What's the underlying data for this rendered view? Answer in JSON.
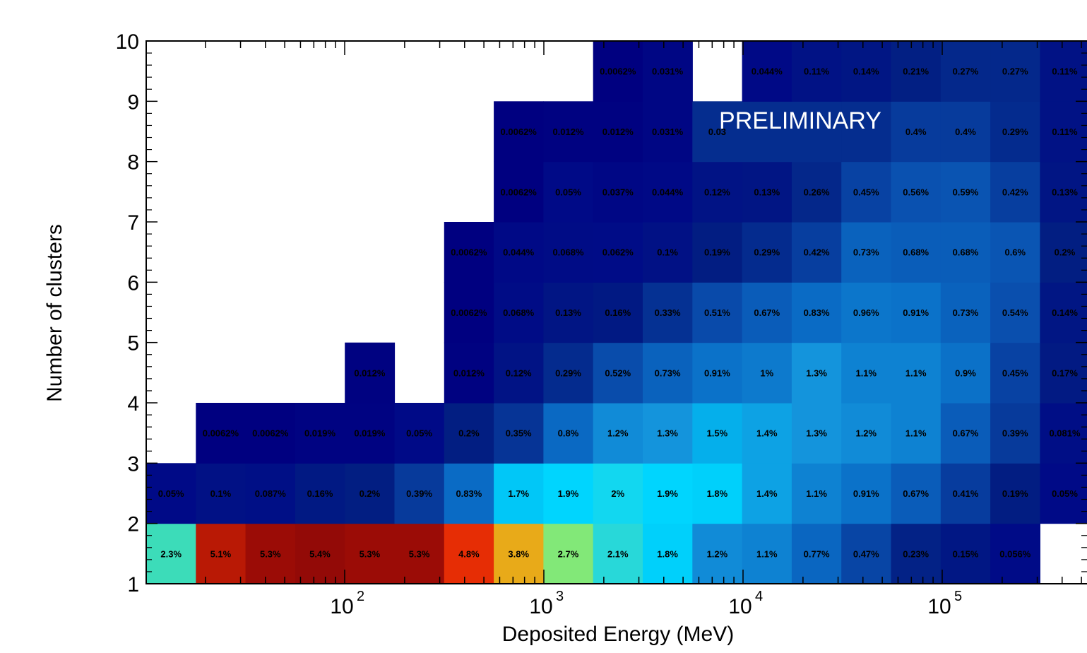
{
  "chart_data": {
    "type": "heatmap",
    "xlabel": "Deposited Energy (MeV)",
    "ylabel": "Number of clusters",
    "watermark": "PRELIMINARY",
    "x_scale": "log",
    "x_range_mev": [
      10,
      500000
    ],
    "ylim": [
      1,
      10
    ],
    "y_ticks": [
      "1",
      "2",
      "3",
      "4",
      "5",
      "6",
      "7",
      "8",
      "9",
      "10"
    ],
    "x_ticks": [
      {
        "base": "10",
        "exp": "2"
      },
      {
        "base": "10",
        "exp": "3"
      },
      {
        "base": "10",
        "exp": "4"
      },
      {
        "base": "10",
        "exp": "5"
      }
    ],
    "cell_unit": "percent of events",
    "rows": [
      {
        "clusters": 1,
        "cells": [
          {
            "bin": 0,
            "label": "2.3%",
            "value": 2.3
          },
          {
            "bin": 1,
            "label": "5.1%",
            "value": 5.1
          },
          {
            "bin": 2,
            "label": "5.3%",
            "value": 5.3
          },
          {
            "bin": 3,
            "label": "5.4%",
            "value": 5.4
          },
          {
            "bin": 4,
            "label": "5.3%",
            "value": 5.3
          },
          {
            "bin": 5,
            "label": "5.3%",
            "value": 5.3
          },
          {
            "bin": 6,
            "label": "4.8%",
            "value": 4.8
          },
          {
            "bin": 7,
            "label": "3.8%",
            "value": 3.8
          },
          {
            "bin": 8,
            "label": "2.7%",
            "value": 2.7
          },
          {
            "bin": 9,
            "label": "2.1%",
            "value": 2.1
          },
          {
            "bin": 10,
            "label": "1.8%",
            "value": 1.8
          },
          {
            "bin": 11,
            "label": "1.2%",
            "value": 1.2
          },
          {
            "bin": 12,
            "label": "1.1%",
            "value": 1.1
          },
          {
            "bin": 13,
            "label": "0.77%",
            "value": 0.77
          },
          {
            "bin": 14,
            "label": "0.47%",
            "value": 0.47
          },
          {
            "bin": 15,
            "label": "0.23%",
            "value": 0.23
          },
          {
            "bin": 16,
            "label": "0.15%",
            "value": 0.15
          },
          {
            "bin": 17,
            "label": "0.056%",
            "value": 0.056
          }
        ]
      },
      {
        "clusters": 2,
        "cells": [
          {
            "bin": 0,
            "label": "0.05%",
            "value": 0.05
          },
          {
            "bin": 1,
            "label": "0.1%",
            "value": 0.1
          },
          {
            "bin": 2,
            "label": "0.087%",
            "value": 0.087
          },
          {
            "bin": 3,
            "label": "0.16%",
            "value": 0.16
          },
          {
            "bin": 4,
            "label": "0.2%",
            "value": 0.2
          },
          {
            "bin": 5,
            "label": "0.39%",
            "value": 0.39
          },
          {
            "bin": 6,
            "label": "0.83%",
            "value": 0.83
          },
          {
            "bin": 7,
            "label": "1.7%",
            "value": 1.7
          },
          {
            "bin": 8,
            "label": "1.9%",
            "value": 1.9
          },
          {
            "bin": 9,
            "label": "2%",
            "value": 2.0
          },
          {
            "bin": 10,
            "label": "1.9%",
            "value": 1.9
          },
          {
            "bin": 11,
            "label": "1.8%",
            "value": 1.8
          },
          {
            "bin": 12,
            "label": "1.4%",
            "value": 1.4
          },
          {
            "bin": 13,
            "label": "1.1%",
            "value": 1.1
          },
          {
            "bin": 14,
            "label": "0.91%",
            "value": 0.91
          },
          {
            "bin": 15,
            "label": "0.67%",
            "value": 0.67
          },
          {
            "bin": 16,
            "label": "0.41%",
            "value": 0.41
          },
          {
            "bin": 17,
            "label": "0.19%",
            "value": 0.19
          },
          {
            "bin": 18,
            "label": "0.05%",
            "value": 0.05
          }
        ]
      },
      {
        "clusters": 3,
        "cells": [
          {
            "bin": 1,
            "label": "0.0062%",
            "value": 0.0062
          },
          {
            "bin": 2,
            "label": "0.0062%",
            "value": 0.0062
          },
          {
            "bin": 3,
            "label": "0.019%",
            "value": 0.019
          },
          {
            "bin": 4,
            "label": "0.019%",
            "value": 0.019
          },
          {
            "bin": 5,
            "label": "0.05%",
            "value": 0.05
          },
          {
            "bin": 6,
            "label": "0.2%",
            "value": 0.2
          },
          {
            "bin": 7,
            "label": "0.35%",
            "value": 0.35
          },
          {
            "bin": 8,
            "label": "0.8%",
            "value": 0.8
          },
          {
            "bin": 9,
            "label": "1.2%",
            "value": 1.2
          },
          {
            "bin": 10,
            "label": "1.3%",
            "value": 1.3
          },
          {
            "bin": 11,
            "label": "1.5%",
            "value": 1.5
          },
          {
            "bin": 12,
            "label": "1.4%",
            "value": 1.4
          },
          {
            "bin": 13,
            "label": "1.3%",
            "value": 1.3
          },
          {
            "bin": 14,
            "label": "1.2%",
            "value": 1.2
          },
          {
            "bin": 15,
            "label": "1.1%",
            "value": 1.1
          },
          {
            "bin": 16,
            "label": "0.67%",
            "value": 0.67
          },
          {
            "bin": 17,
            "label": "0.39%",
            "value": 0.39
          },
          {
            "bin": 18,
            "label": "0.081%",
            "value": 0.081
          }
        ]
      },
      {
        "clusters": 4,
        "cells": [
          {
            "bin": 4,
            "label": "0.012%",
            "value": 0.012
          },
          {
            "bin": 6,
            "label": "0.012%",
            "value": 0.012
          },
          {
            "bin": 7,
            "label": "0.12%",
            "value": 0.12
          },
          {
            "bin": 8,
            "label": "0.29%",
            "value": 0.29
          },
          {
            "bin": 9,
            "label": "0.52%",
            "value": 0.52
          },
          {
            "bin": 10,
            "label": "0.73%",
            "value": 0.73
          },
          {
            "bin": 11,
            "label": "0.91%",
            "value": 0.91
          },
          {
            "bin": 12,
            "label": "1%",
            "value": 1.0
          },
          {
            "bin": 13,
            "label": "1.3%",
            "value": 1.3
          },
          {
            "bin": 14,
            "label": "1.1%",
            "value": 1.1
          },
          {
            "bin": 15,
            "label": "1.1%",
            "value": 1.1
          },
          {
            "bin": 16,
            "label": "0.9%",
            "value": 0.9
          },
          {
            "bin": 17,
            "label": "0.45%",
            "value": 0.45
          },
          {
            "bin": 18,
            "label": "0.17%",
            "value": 0.17
          }
        ]
      },
      {
        "clusters": 5,
        "cells": [
          {
            "bin": 6,
            "label": "0.0062%",
            "value": 0.0062
          },
          {
            "bin": 7,
            "label": "0.068%",
            "value": 0.068
          },
          {
            "bin": 8,
            "label": "0.13%",
            "value": 0.13
          },
          {
            "bin": 9,
            "label": "0.16%",
            "value": 0.16
          },
          {
            "bin": 10,
            "label": "0.33%",
            "value": 0.33
          },
          {
            "bin": 11,
            "label": "0.51%",
            "value": 0.51
          },
          {
            "bin": 12,
            "label": "0.67%",
            "value": 0.67
          },
          {
            "bin": 13,
            "label": "0.83%",
            "value": 0.83
          },
          {
            "bin": 14,
            "label": "0.96%",
            "value": 0.96
          },
          {
            "bin": 15,
            "label": "0.91%",
            "value": 0.91
          },
          {
            "bin": 16,
            "label": "0.73%",
            "value": 0.73
          },
          {
            "bin": 17,
            "label": "0.54%",
            "value": 0.54
          },
          {
            "bin": 18,
            "label": "0.14%",
            "value": 0.14
          }
        ]
      },
      {
        "clusters": 6,
        "cells": [
          {
            "bin": 6,
            "label": "0.0062%",
            "value": 0.0062
          },
          {
            "bin": 7,
            "label": "0.044%",
            "value": 0.044
          },
          {
            "bin": 8,
            "label": "0.068%",
            "value": 0.068
          },
          {
            "bin": 9,
            "label": "0.062%",
            "value": 0.062
          },
          {
            "bin": 10,
            "label": "0.1%",
            "value": 0.1
          },
          {
            "bin": 11,
            "label": "0.19%",
            "value": 0.19
          },
          {
            "bin": 12,
            "label": "0.29%",
            "value": 0.29
          },
          {
            "bin": 13,
            "label": "0.42%",
            "value": 0.42
          },
          {
            "bin": 14,
            "label": "0.73%",
            "value": 0.73
          },
          {
            "bin": 15,
            "label": "0.68%",
            "value": 0.68
          },
          {
            "bin": 16,
            "label": "0.68%",
            "value": 0.68
          },
          {
            "bin": 17,
            "label": "0.6%",
            "value": 0.6
          },
          {
            "bin": 18,
            "label": "0.2%",
            "value": 0.2
          }
        ]
      },
      {
        "clusters": 7,
        "cells": [
          {
            "bin": 7,
            "label": "0.0062%",
            "value": 0.0062
          },
          {
            "bin": 8,
            "label": "0.05%",
            "value": 0.05
          },
          {
            "bin": 9,
            "label": "0.037%",
            "value": 0.037
          },
          {
            "bin": 10,
            "label": "0.044%",
            "value": 0.044
          },
          {
            "bin": 11,
            "label": "0.12%",
            "value": 0.12
          },
          {
            "bin": 12,
            "label": "0.13%",
            "value": 0.13
          },
          {
            "bin": 13,
            "label": "0.26%",
            "value": 0.26
          },
          {
            "bin": 14,
            "label": "0.45%",
            "value": 0.45
          },
          {
            "bin": 15,
            "label": "0.56%",
            "value": 0.56
          },
          {
            "bin": 16,
            "label": "0.59%",
            "value": 0.59
          },
          {
            "bin": 17,
            "label": "0.42%",
            "value": 0.42
          },
          {
            "bin": 18,
            "label": "0.13%",
            "value": 0.13
          }
        ]
      },
      {
        "clusters": 8,
        "cells": [
          {
            "bin": 7,
            "label": "0.0062%",
            "value": 0.0062
          },
          {
            "bin": 8,
            "label": "0.012%",
            "value": 0.012
          },
          {
            "bin": 9,
            "label": "0.012%",
            "value": 0.012
          },
          {
            "bin": 10,
            "label": "0.031%",
            "value": 0.031
          },
          {
            "bin": 11,
            "label": "0.03",
            "value": null
          },
          {
            "bin": 12,
            "label": "",
            "value": null
          },
          {
            "bin": 13,
            "label": "",
            "value": null
          },
          {
            "bin": 14,
            "label": "",
            "value": null
          },
          {
            "bin": 15,
            "label": "0.4%",
            "value": 0.4
          },
          {
            "bin": 16,
            "label": "0.4%",
            "value": 0.4
          },
          {
            "bin": 17,
            "label": "0.29%",
            "value": 0.29
          },
          {
            "bin": 18,
            "label": "0.11%",
            "value": 0.11
          }
        ]
      },
      {
        "clusters": 9,
        "cells": [
          {
            "bin": 9,
            "label": "0.0062%",
            "value": 0.0062
          },
          {
            "bin": 10,
            "label": "0.031%",
            "value": 0.031
          },
          {
            "bin": 12,
            "label": "0.044%",
            "value": 0.044
          },
          {
            "bin": 13,
            "label": "0.11%",
            "value": 0.11
          },
          {
            "bin": 14,
            "label": "0.14%",
            "value": 0.14
          },
          {
            "bin": 15,
            "label": "0.21%",
            "value": 0.21
          },
          {
            "bin": 16,
            "label": "0.27%",
            "value": 0.27
          },
          {
            "bin": 17,
            "label": "0.27%",
            "value": 0.27
          },
          {
            "bin": 18,
            "label": "0.11%",
            "value": 0.11
          }
        ]
      }
    ]
  }
}
